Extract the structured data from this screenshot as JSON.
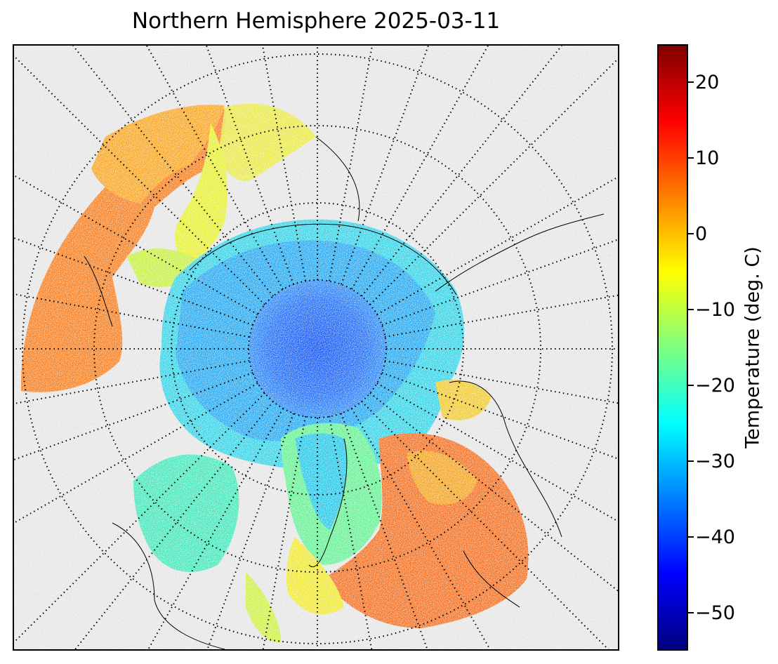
{
  "title": "Northern Hemisphere 2025-03-11",
  "colorbar": {
    "label": "Temperature (deg. C)",
    "min": -55,
    "max": 25,
    "ticks": [
      20,
      10,
      0,
      -10,
      -20,
      -30,
      -40,
      -50
    ],
    "tick_labels": [
      "20",
      "10",
      "0",
      "−10",
      "−20",
      "−30",
      "−40",
      "−50"
    ],
    "colormap": "jet",
    "colormap_stops": [
      "#00007f",
      "#0000ff",
      "#007fff",
      "#00ffff",
      "#7fff7f",
      "#ffff00",
      "#ff7f00",
      "#ff0000",
      "#7f0000"
    ]
  },
  "map": {
    "projection": "north-polar-stereographic",
    "graticule": "dotted",
    "land_outline": "black coastlines",
    "background_color": "#e4e4e4",
    "no_data_color": "#ffffff"
  }
}
